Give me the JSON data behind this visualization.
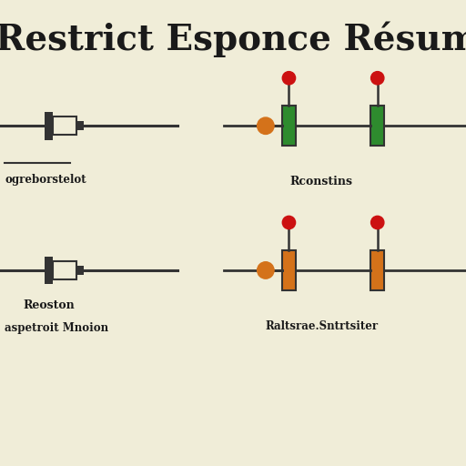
{
  "bg_color": "#f0edd8",
  "title": "Restrict Esponce Résumé",
  "title_fontsize": 28,
  "title_color": "#1a1a1a",
  "resistor1_color": "#333333",
  "resistor2_color_green": "#2e8b2e",
  "resistor2_color_orange": "#d4721a",
  "dot_color": "#cc1111",
  "label1": "ogreborstelot",
  "label2": "Reoston",
  "label3": "aspetroit Mnoion",
  "label4": "Rconstins",
  "label5": "Raltsrae.Sntrtsiter",
  "font_color": "#1a1a1a"
}
